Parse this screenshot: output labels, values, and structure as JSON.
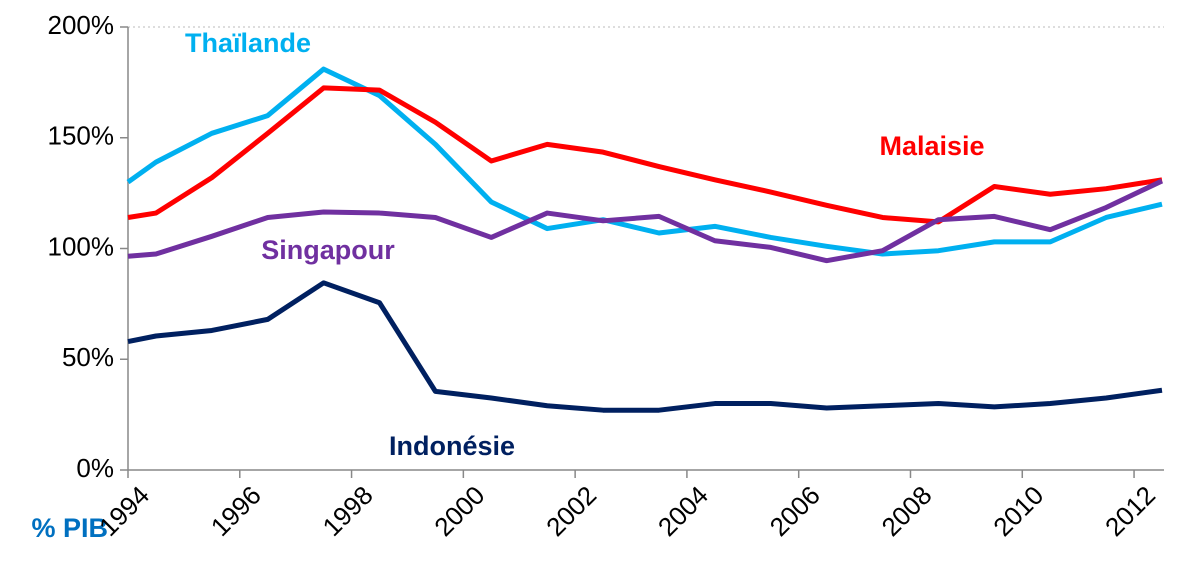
{
  "chart_data": {
    "type": "line",
    "y_axis_label": "% PIB",
    "x": [
      1994,
      1994.5,
      1995.5,
      1996.5,
      1997.5,
      1998.5,
      1999.5,
      2000.5,
      2001.5,
      2002.5,
      2003.5,
      2004.5,
      2005.5,
      2006.5,
      2007.5,
      2008.5,
      2009.5,
      2010.5,
      2011.5,
      2012.5
    ],
    "xlim": [
      1994,
      2012.5
    ],
    "xticks": [
      1994,
      1996,
      1998,
      2000,
      2002,
      2004,
      2006,
      2008,
      2010,
      2012
    ],
    "ylim": [
      0,
      200
    ],
    "yticks": [
      {
        "value": 0,
        "label": "0%"
      },
      {
        "value": 50,
        "label": "50%"
      },
      {
        "value": 100,
        "label": "100%"
      },
      {
        "value": 150,
        "label": "150%"
      },
      {
        "value": 200,
        "label": "200%"
      }
    ],
    "grid": false,
    "series": [
      {
        "name": "Thaïlande",
        "color": "#00b0f0",
        "values": [
          130,
          139,
          152,
          160,
          181,
          169,
          147,
          121,
          109,
          113,
          107,
          110,
          105,
          101,
          97.5,
          99,
          103,
          103,
          114,
          120
        ]
      },
      {
        "name": "Malaisie",
        "color": "#ff0000",
        "values": [
          114,
          116,
          132,
          152,
          172.5,
          171.5,
          157,
          139.5,
          147,
          143.5,
          137,
          131,
          125.5,
          119.5,
          114,
          112,
          128,
          124.5,
          127,
          131
        ]
      },
      {
        "name": "Singapour",
        "color": "#7030a0",
        "values": [
          96.5,
          97.5,
          105.5,
          114,
          116.5,
          116,
          114,
          105,
          116,
          112.5,
          114.5,
          103.5,
          100.5,
          94.5,
          99,
          113,
          114.5,
          108.5,
          118.5,
          130.5
        ]
      },
      {
        "name": "Indonésie",
        "color": "#002060",
        "values": [
          58,
          60.5,
          63,
          68,
          84.5,
          75.5,
          35.5,
          32.5,
          29,
          27,
          27,
          30,
          30,
          28,
          29,
          30,
          28.5,
          30,
          32.5,
          36
        ]
      }
    ]
  }
}
